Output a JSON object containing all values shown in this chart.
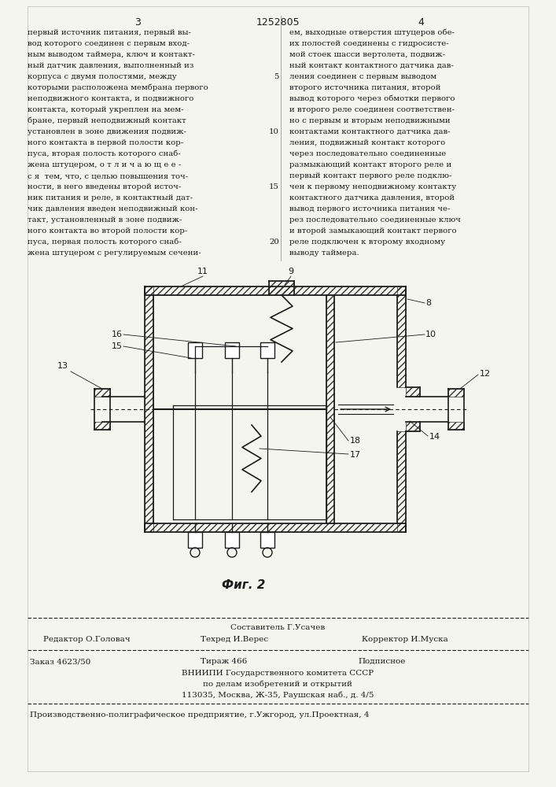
{
  "page_number_left": "3",
  "page_number_center": "1252805",
  "page_number_right": "4",
  "left_column_text": [
    "первый источник питания, первый вы-",
    "вод которого соединен с первым вход-",
    "ным выводом таймера, ключ и контакт-",
    "ный датчик давления, выполненный из",
    "корпуса с двумя полостями, между",
    "которыми расположена мембрана первого",
    "неподвижного контакта, и подвижного",
    "контакта, который укреплен на мем-",
    "бране, первый неподвижный контакт",
    "установлен в зоне движения подвиж-",
    "ного контакта в первой полости кор-",
    "пуса, вторая полость которого снаб-",
    "жена штуцером, о т л и ч а ю щ е е -",
    "с я  тем, что, с целью повышения точ-",
    "ности, в него введены второй источ-",
    "ник питания и реле, в контактный дат-",
    "чик давления введен неподвижный кон-",
    "такт, установленный в зоне подвиж-",
    "ного контакта во второй полости кор-",
    "пуса, первая полость которого снаб-",
    "жена штуцером с регулируемым сечени-"
  ],
  "right_column_text": [
    "ем, выходные отверстия штуцеров обе-",
    "их полостей соединены с гидросисте-",
    "мой стоек шасси вертолета, подвиж-",
    "ный контакт контактного датчика дав-",
    "ления соединен с первым выводом",
    "второго источника питания, второй",
    "вывод которого через обмотки первого",
    "и второго реле соединен соответствен-",
    "но с первым и вторым неподвижными",
    "контактами контактного датчика дав-",
    "ления, подвижный контакт которого",
    "через последовательно соединенные",
    "размыкающий контакт второго реле и",
    "первый контакт первого реле подклю-",
    "чен к первому неподвижному контакту",
    "контактного датчика давления, второй",
    "вывод первого источника питания че-",
    "рез последовательно соединенные ключ",
    "и второй замыкающий контакт первого",
    "реле подключен к второму входному",
    "выводу таймера."
  ],
  "line_numbers": [
    [
      5,
      4
    ],
    [
      10,
      9
    ],
    [
      15,
      14
    ],
    [
      20,
      19
    ]
  ],
  "editor_line": "Редактор О.Головач",
  "composer_line": "Составитель Г.Усачев",
  "techred_line": "Техред И.Верес",
  "corrector_line": "Корректор И.Муска",
  "order_line": "Заказ 4623/50",
  "tirazh_line": "Тираж 466",
  "podpisnoe_line": "Подписное",
  "vniiipi_line": "ВНИИПИ Государственного комитета СССР",
  "po_delam_line": "по делам изобретений и открытий",
  "address_line": "113035, Москва, Ж-35, Раушская наб., д. 4/5",
  "factory_line": "Производственно-полиграфическое предприятие, г.Ужгород, ул.Проектная, 4",
  "fig_label": "Фиг. 2",
  "bg_color": "#f5f5f0",
  "text_color": "#1a1a1a"
}
